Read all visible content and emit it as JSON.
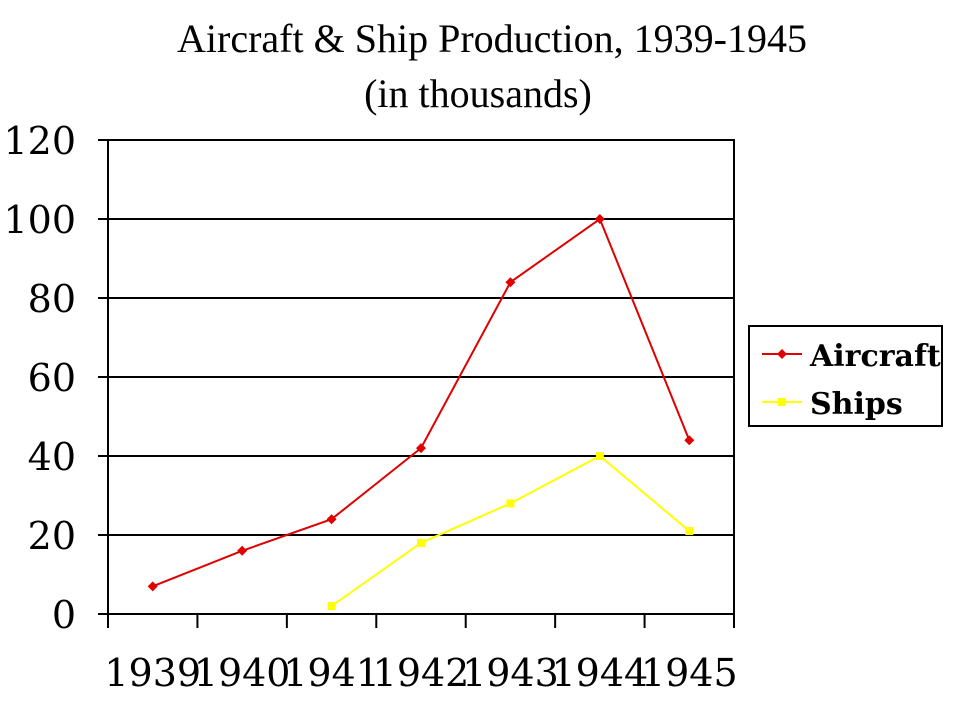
{
  "chart_data": {
    "type": "line",
    "title": "Aircraft & Ship Production, 1939-1945",
    "subtitle": "(in thousands)",
    "categories": [
      "1939",
      "1940",
      "1941",
      "1942",
      "1943",
      "1944",
      "1945"
    ],
    "ylim": [
      0,
      120
    ],
    "yticks": [
      "0",
      "20",
      "40",
      "60",
      "80",
      "100",
      "120"
    ],
    "grid": true,
    "legend_position": "right",
    "series": [
      {
        "name": "Aircraft",
        "color": "#e00000",
        "marker": "diamond",
        "values": [
          7,
          16,
          24,
          42,
          84,
          100,
          44
        ]
      },
      {
        "name": "Ships",
        "color": "#ffff00",
        "marker": "square",
        "values": [
          null,
          null,
          2,
          18,
          28,
          40,
          21
        ]
      }
    ]
  }
}
